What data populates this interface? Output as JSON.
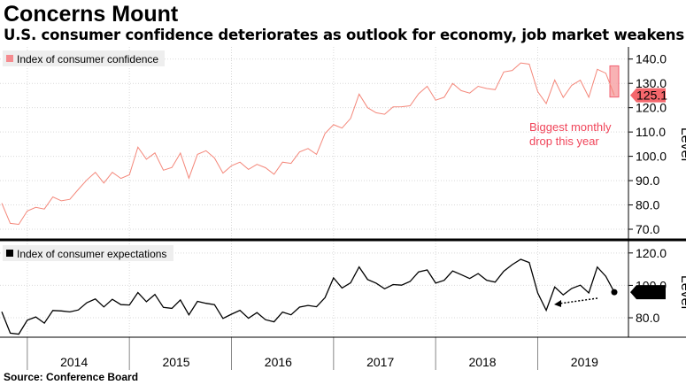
{
  "header": {
    "title": "Concerns Mount",
    "subtitle": "U.S. consumer confidence deteriorates as outlook for economy, job market weakens"
  },
  "footer": {
    "source": "Source: Conference Board"
  },
  "colors": {
    "confidence": "#f4877a",
    "confidence_box": "#f58b8f",
    "annotation": "#f0455a",
    "expectations": "#000000",
    "grid": "#d9d9d9"
  },
  "chart_data": [
    {
      "type": "line",
      "series": [
        {
          "name": "Index of consumer confidence",
          "values": [
            80.7,
            72.4,
            72.0,
            77.5,
            79.0,
            78.3,
            83.3,
            81.7,
            82.3,
            86.4,
            90.3,
            93.4,
            89.0,
            93.4,
            90.9,
            92.4,
            103.8,
            98.8,
            101.4,
            94.3,
            95.4,
            101.3,
            91.0,
            100.8,
            102.3,
            99.3,
            93.1,
            96.1,
            97.6,
            94.6,
            96.7,
            95.3,
            92.6,
            97.6,
            97.1,
            101.8,
            103.2,
            100.8,
            109.4,
            113.0,
            111.6,
            115.6,
            125.6,
            120.0,
            117.9,
            117.3,
            120.3,
            120.4,
            120.8,
            125.7,
            128.8,
            123.1,
            124.3,
            130.0,
            127.0,
            126.0,
            128.8,
            127.9,
            127.4,
            134.7,
            135.3,
            138.4,
            137.9,
            126.6,
            121.7,
            131.4,
            124.2,
            129.2,
            131.3,
            124.3,
            135.8,
            134.2,
            125.1
          ]
        }
      ],
      "x_start": "2013-10",
      "frequency": "monthly",
      "ylabel": "Level",
      "ylim": [
        66,
        145
      ],
      "yticks": [
        70.0,
        80.0,
        90.0,
        100.0,
        110.0,
        120.0,
        130.0,
        140.0
      ],
      "last_value_label": "125.1",
      "annotation": "Biggest monthly\ndrop this year",
      "legend": "top-left",
      "grid": true
    },
    {
      "type": "line",
      "series": [
        {
          "name": "Index of consumer expectations",
          "values": [
            83.7,
            70.5,
            69.9,
            78.5,
            80.5,
            76.7,
            84.5,
            84.2,
            83.6,
            84.8,
            89.3,
            91.6,
            86.7,
            91.4,
            88.1,
            87.9,
            95.6,
            89.9,
            94.4,
            86.4,
            85.8,
            91.0,
            81.8,
            90.1,
            88.9,
            88.1,
            79.6,
            82.2,
            84.6,
            79.7,
            83.2,
            78.8,
            77.5,
            83.5,
            81.8,
            86.6,
            87.6,
            86.8,
            92.4,
            104.6,
            98.4,
            101.6,
            111.4,
            103.6,
            101.4,
            97.9,
            100.5,
            100.1,
            102.4,
            108.3,
            109.5,
            101.4,
            103.1,
            108.9,
            106.6,
            104.2,
            107.3,
            103.2,
            102.0,
            108.7,
            112.8,
            116.1,
            114.1,
            95.3,
            84.6,
            99.0,
            94.1,
            98.1,
            100.1,
            95.3,
            111.3,
            105.6,
            95.8
          ]
        }
      ],
      "x_start": "2013-10",
      "frequency": "monthly",
      "ylabel": "Level",
      "ylim": [
        68,
        127
      ],
      "yticks": [
        80.0,
        100.0,
        120.0
      ],
      "last_value_label": "95.8",
      "legend": "top-left",
      "grid": true
    }
  ],
  "x_axis": {
    "tick_labels": [
      "2014",
      "2015",
      "2016",
      "2017",
      "2018",
      "2019"
    ]
  }
}
